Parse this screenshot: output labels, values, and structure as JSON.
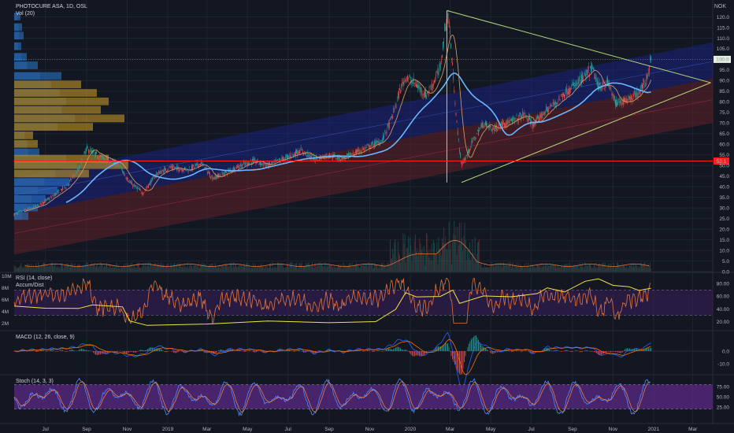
{
  "header": {
    "symbol_line": "PHOTOCURE ASA, 1D, OSL",
    "volume_legend": "Vol (20)",
    "currency": "NOK"
  },
  "panes": {
    "rsi_legend": "RSI (14, close)",
    "accum_legend": "Accum/Dist",
    "macd_legend": "MACD (12, 26, close, 9)",
    "stoch_legend": "Stoch (14, 3, 3)"
  },
  "colors": {
    "background": "#131722",
    "grid": "#1f2433",
    "candle_up": "#26a69a",
    "candle_down": "#ef5350",
    "ma": "#6bb6ff",
    "upper_channel": "#1a237e",
    "lower_channel": "#5c1f2a",
    "triangle": "#b6d77a",
    "support_line": "#ff1f1f",
    "vp_blue": "#2a7bd6",
    "vp_gold": "#d4a226",
    "rsi_line": "#e3743c",
    "accum_line": "#f5e342",
    "stoch_band": "#5b2a86"
  },
  "chart_data": [
    {
      "type": "candlestick",
      "title": "PHOTOCURE ASA, 1D, OSL",
      "x_ticks": [
        "Jul",
        "Sep",
        "Nov",
        "2019",
        "Mar",
        "May",
        "Jul",
        "Sep",
        "Nov",
        "2020",
        "Mar",
        "May",
        "Jul",
        "Sep",
        "Nov",
        "2021",
        "Mar"
      ],
      "x_tick_dates": [
        "2018-07-01",
        "2018-09-01",
        "2018-11-01",
        "2019-01-01",
        "2019-03-01",
        "2019-05-01",
        "2019-07-01",
        "2019-09-01",
        "2019-11-01",
        "2020-01-01",
        "2020-03-01",
        "2020-05-01",
        "2020-07-01",
        "2020-09-01",
        "2020-11-01",
        "2021-01-01",
        "2021-03-01"
      ],
      "y_ticks": [
        "0.0",
        "5.0",
        "10.0",
        "15.0",
        "20.0",
        "25.0",
        "30.0",
        "35.0",
        "40.0",
        "45.0",
        "50.0",
        "55.0",
        "60.0",
        "65.0",
        "70.0",
        "75.0",
        "80.0",
        "85.0",
        "90.0",
        "95.0",
        "100.0",
        "105.0",
        "110.0",
        "115.0",
        "120.0"
      ],
      "ylim": [
        0,
        120
      ],
      "last_price": "100.0",
      "support_label": "52.1",
      "price_path": [
        [
          "2018-05-15",
          27
        ],
        [
          "2018-06-01",
          29
        ],
        [
          "2018-06-20",
          31
        ],
        [
          "2018-07-10",
          35
        ],
        [
          "2018-08-01",
          40
        ],
        [
          "2018-08-20",
          48
        ],
        [
          "2018-09-01",
          58
        ],
        [
          "2018-09-15",
          55
        ],
        [
          "2018-10-01",
          53
        ],
        [
          "2018-10-20",
          50
        ],
        [
          "2018-11-05",
          42
        ],
        [
          "2018-11-25",
          37
        ],
        [
          "2018-12-15",
          46
        ],
        [
          "2019-01-05",
          49
        ],
        [
          "2019-02-01",
          48
        ],
        [
          "2019-02-20",
          51
        ],
        [
          "2019-03-10",
          44
        ],
        [
          "2019-04-01",
          47
        ],
        [
          "2019-04-20",
          50
        ],
        [
          "2019-05-10",
          52
        ],
        [
          "2019-06-01",
          50
        ],
        [
          "2019-07-01",
          54
        ],
        [
          "2019-07-20",
          57
        ],
        [
          "2019-08-10",
          53
        ],
        [
          "2019-09-01",
          55
        ],
        [
          "2019-09-20",
          53
        ],
        [
          "2019-10-10",
          56
        ],
        [
          "2019-11-01",
          59
        ],
        [
          "2019-11-20",
          62
        ],
        [
          "2019-12-05",
          73
        ],
        [
          "2019-12-15",
          84
        ],
        [
          "2019-12-25",
          92
        ],
        [
          "2020-01-10",
          88
        ],
        [
          "2020-01-25",
          83
        ],
        [
          "2020-02-05",
          89
        ],
        [
          "2020-02-15",
          96
        ],
        [
          "2020-02-22",
          114
        ],
        [
          "2020-02-27",
          121
        ],
        [
          "2020-03-05",
          95
        ],
        [
          "2020-03-12",
          66
        ],
        [
          "2020-03-18",
          50
        ],
        [
          "2020-03-25",
          54
        ],
        [
          "2020-04-05",
          62
        ],
        [
          "2020-04-20",
          70
        ],
        [
          "2020-05-05",
          67
        ],
        [
          "2020-05-20",
          70
        ],
        [
          "2020-06-05",
          71
        ],
        [
          "2020-06-20",
          74
        ],
        [
          "2020-07-05",
          69
        ],
        [
          "2020-07-20",
          75
        ],
        [
          "2020-08-05",
          79
        ],
        [
          "2020-08-20",
          84
        ],
        [
          "2020-09-05",
          88
        ],
        [
          "2020-09-20",
          92
        ],
        [
          "2020-10-01",
          96
        ],
        [
          "2020-10-10",
          87
        ],
        [
          "2020-10-25",
          89
        ],
        [
          "2020-11-05",
          79
        ],
        [
          "2020-11-20",
          81
        ],
        [
          "2020-12-05",
          83
        ],
        [
          "2020-12-20",
          89
        ],
        [
          "2020-12-28",
          100
        ]
      ],
      "volume_legend": "Vol (20)"
    },
    {
      "type": "line",
      "title": "RSI (14, close)",
      "series": [
        {
          "name": "Accum/Dist"
        }
      ],
      "y_ticks": [
        "80.00",
        "60.00",
        "40.00",
        "20.00"
      ],
      "left_ticks": [
        "10M",
        "8M",
        "6M",
        "4M",
        "2M"
      ],
      "levels": [
        70,
        30
      ]
    },
    {
      "type": "line",
      "title": "MACD (12, 26, close, 9)",
      "y_ticks": [
        "0.0",
        "-10.0"
      ]
    },
    {
      "type": "line",
      "title": "Stoch (14, 3, 3)",
      "y_ticks": [
        "75.00",
        "50.00",
        "25.00"
      ],
      "levels": [
        80,
        20
      ]
    }
  ]
}
